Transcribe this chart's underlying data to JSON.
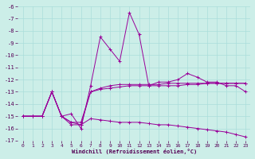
{
  "xlabel": "Windchill (Refroidissement éolien,°C)",
  "background_color": "#cceee8",
  "grid_color": "#aaddda",
  "line_color": "#990099",
  "xlim": [
    -0.5,
    23.5
  ],
  "ylim": [
    -17,
    -6
  ],
  "xticks": [
    0,
    1,
    2,
    3,
    4,
    5,
    6,
    7,
    8,
    9,
    10,
    11,
    12,
    13,
    14,
    15,
    16,
    17,
    18,
    19,
    20,
    21,
    22,
    23
  ],
  "yticks": [
    -17,
    -16,
    -15,
    -14,
    -13,
    -12,
    -11,
    -10,
    -9,
    -8,
    -7,
    -6
  ],
  "series1_x": [
    0,
    1,
    2,
    3,
    4,
    5,
    6,
    7,
    8,
    9,
    10,
    11,
    12,
    13,
    14,
    15,
    16,
    17,
    18,
    19,
    20,
    21,
    22,
    23
  ],
  "series1_y": [
    -15.0,
    -15.0,
    -15.0,
    -13.0,
    -15.0,
    -14.8,
    -16.0,
    -12.5,
    -8.5,
    -9.5,
    -10.5,
    -6.5,
    -8.3,
    -12.5,
    -12.2,
    -12.2,
    -12.0,
    -11.5,
    -11.8,
    -12.2,
    -12.2,
    -12.5,
    -12.5,
    -13.0
  ],
  "series2_x": [
    0,
    1,
    2,
    3,
    4,
    5,
    6,
    7,
    8,
    9,
    10,
    11,
    12,
    13,
    14,
    15,
    16,
    17,
    18,
    19,
    20,
    21,
    22,
    23
  ],
  "series2_y": [
    -15.0,
    -15.0,
    -15.0,
    -13.0,
    -15.0,
    -15.5,
    -15.7,
    -13.0,
    -12.8,
    -12.7,
    -12.6,
    -12.5,
    -12.5,
    -12.5,
    -12.5,
    -12.5,
    -12.5,
    -12.4,
    -12.4,
    -12.3,
    -12.3,
    -12.3,
    -12.3,
    -12.3
  ],
  "series3_x": [
    0,
    1,
    2,
    3,
    4,
    5,
    6,
    7,
    8,
    9,
    10,
    11,
    12,
    13,
    14,
    15,
    16,
    17,
    18,
    19,
    20,
    21,
    22,
    23
  ],
  "series3_y": [
    -15.0,
    -15.0,
    -15.0,
    -13.0,
    -15.0,
    -15.5,
    -15.5,
    -13.0,
    -12.7,
    -12.5,
    -12.4,
    -12.4,
    -12.4,
    -12.4,
    -12.4,
    -12.3,
    -12.3,
    -12.3,
    -12.3,
    -12.3,
    -12.3,
    -12.3,
    -12.3,
    -12.3
  ],
  "series4_x": [
    0,
    1,
    2,
    3,
    4,
    5,
    6,
    7,
    8,
    9,
    10,
    11,
    12,
    13,
    14,
    15,
    16,
    17,
    18,
    19,
    20,
    21,
    22,
    23
  ],
  "series4_y": [
    -15.0,
    -15.0,
    -15.0,
    -13.0,
    -15.0,
    -15.7,
    -15.7,
    -15.2,
    -15.3,
    -15.4,
    -15.5,
    -15.5,
    -15.5,
    -15.6,
    -15.7,
    -15.7,
    -15.8,
    -15.9,
    -16.0,
    -16.1,
    -16.2,
    -16.3,
    -16.5,
    -16.7
  ]
}
